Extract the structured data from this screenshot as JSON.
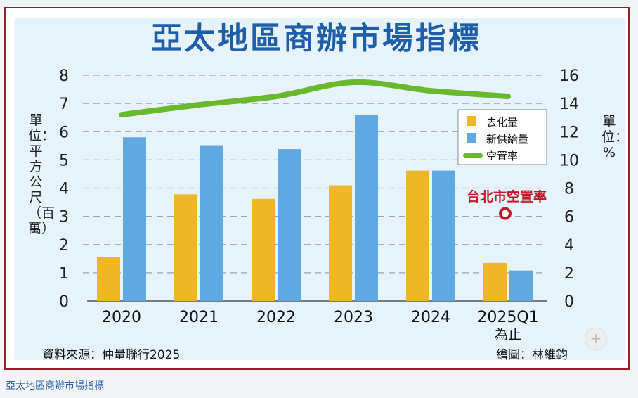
{
  "chart_data": {
    "type": "bar",
    "title": "亞太地區商辦市場指標",
    "categories": [
      "2020",
      "2021",
      "2022",
      "2023",
      "2024",
      "2025Q1"
    ],
    "category_sublabels": [
      "",
      "",
      "",
      "",
      "",
      "為止"
    ],
    "series": [
      {
        "name": "去化量",
        "type": "bar",
        "axis": "left",
        "color": "#f0b62a",
        "values": [
          1.55,
          3.78,
          3.62,
          4.1,
          4.62,
          1.35
        ]
      },
      {
        "name": "新供給量",
        "type": "bar",
        "axis": "left",
        "color": "#5fa8e2",
        "values": [
          5.8,
          5.52,
          5.38,
          6.6,
          4.62,
          1.08
        ]
      },
      {
        "name": "空置率",
        "type": "line",
        "axis": "right",
        "color": "#6ab82e",
        "values": [
          13.2,
          13.9,
          14.5,
          15.5,
          14.9,
          14.5
        ]
      }
    ],
    "ylabel": "單位：平方公尺（百萬）",
    "ylim": [
      0,
      8
    ],
    "yticks": [
      "0",
      "1",
      "2",
      "3",
      "4",
      "5",
      "6",
      "7",
      "8"
    ],
    "y2label": "單位：%",
    "y2lim": [
      0,
      16
    ],
    "y2ticks": [
      "0",
      "2",
      "4",
      "6",
      "8",
      "10",
      "12",
      "14",
      "16"
    ],
    "grid": true,
    "legend_placement": "right",
    "annotation": {
      "label": "台北市空置率",
      "x": "2025Q1",
      "y2": 6.2,
      "color": "#c0182a"
    }
  },
  "source_text": "資料來源：仲量聯行2025",
  "credit_text": "繪圖：林維鈞",
  "caption": "亞太地區商辦市場指標",
  "zoom_icon": "zoom-in-icon"
}
